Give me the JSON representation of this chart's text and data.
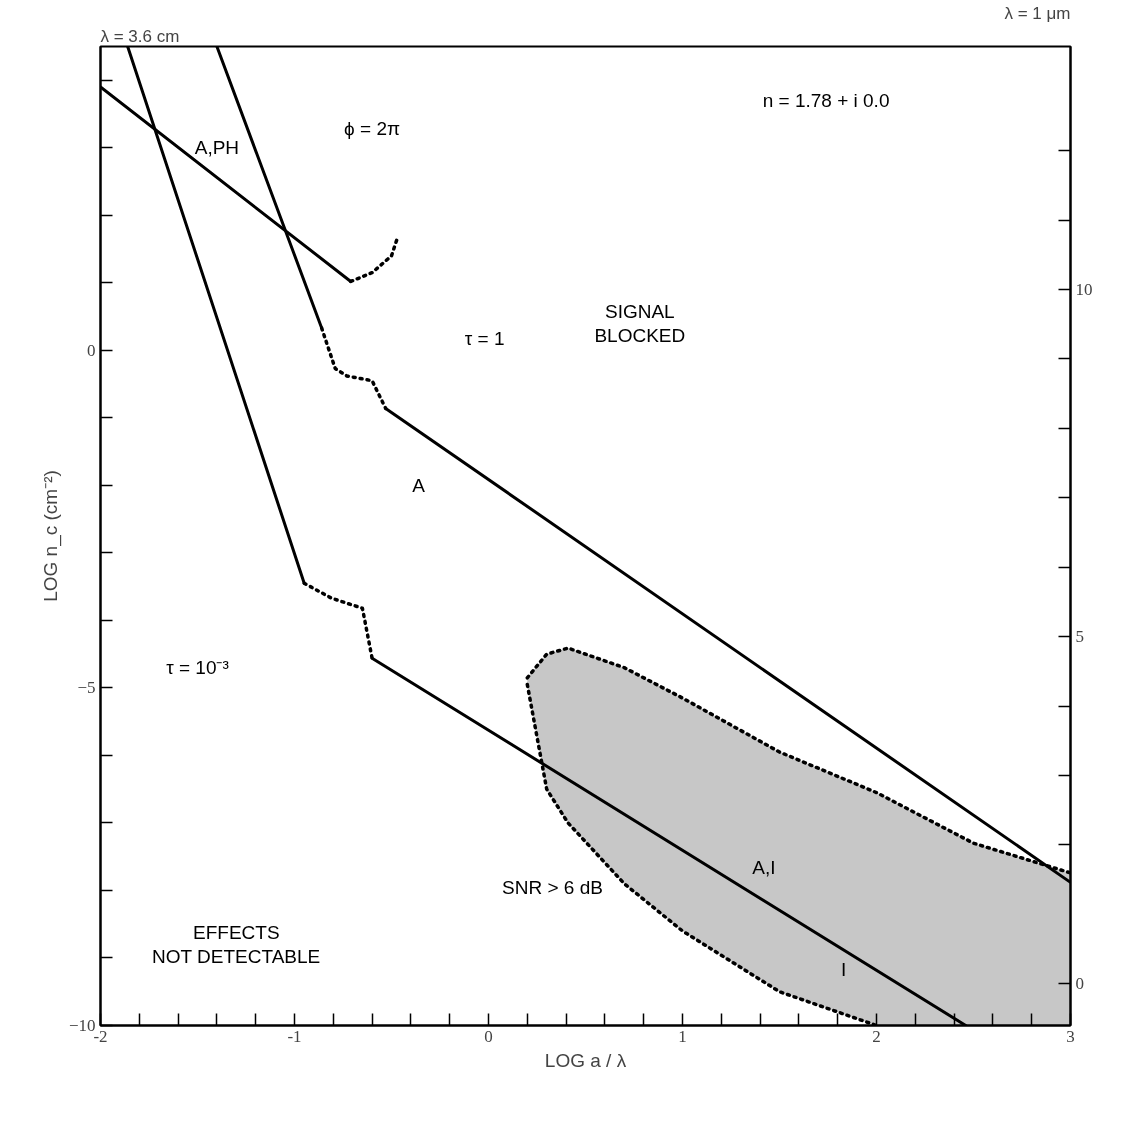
{
  "chart_data": {
    "type": "line",
    "xlabel": "LOG a / λ",
    "ylabel": "LOG n_c (cm⁻²)",
    "xlim": [
      -2,
      3
    ],
    "xticks": [
      -2,
      {
        "value": -1.8,
        "label": null
      },
      {
        "value": -1.6,
        "label": null
      },
      {
        "value": -1.4,
        "label": null
      },
      {
        "value": -1.2,
        "label": null
      },
      -1,
      {
        "value": -0.8,
        "label": null
      },
      {
        "value": -0.6,
        "label": null
      },
      {
        "value": -0.4,
        "label": null
      },
      {
        "value": -0.2,
        "label": null
      },
      0,
      {
        "value": 0.2,
        "label": null
      },
      {
        "value": 0.4,
        "label": null
      },
      {
        "value": 0.6,
        "label": null
      },
      {
        "value": 0.8,
        "label": null
      },
      1,
      {
        "value": 1.2,
        "label": null
      },
      {
        "value": 1.4,
        "label": null
      },
      {
        "value": 1.6,
        "label": null
      },
      {
        "value": 1.8,
        "label": null
      },
      2,
      {
        "value": 2.2,
        "label": null
      },
      {
        "value": 2.4,
        "label": null
      },
      {
        "value": 2.6,
        "label": null
      },
      {
        "value": 2.8,
        "label": null
      },
      3
    ],
    "ylim": [
      -10,
      4.5
    ],
    "yticks": [
      {
        "value": -10,
        "label": "−10"
      },
      {
        "value": -9,
        "label": null
      },
      {
        "value": -8,
        "label": null
      },
      {
        "value": -7,
        "label": null
      },
      {
        "value": -6,
        "label": null
      },
      {
        "value": -5,
        "label": "−5"
      },
      {
        "value": -4,
        "label": null
      },
      {
        "value": -3,
        "label": null
      },
      {
        "value": -2,
        "label": null
      },
      {
        "value": -1,
        "label": null
      },
      0,
      {
        "value": 1,
        "label": null
      },
      {
        "value": 2,
        "label": null
      },
      {
        "value": 3,
        "label": null
      },
      {
        "value": 4,
        "label": null
      }
    ],
    "y2lim": [
      -0.6,
      13.5
    ],
    "y2ticks": [
      0,
      {
        "value": 2,
        "label": null
      },
      {
        "value": 3,
        "label": null
      },
      {
        "value": 4,
        "label": null
      },
      5,
      {
        "value": 6,
        "label": null
      },
      {
        "value": 7,
        "label": null
      },
      {
        "value": 8,
        "label": null
      },
      {
        "value": 9,
        "label": null
      },
      10,
      {
        "value": 11,
        "label": null
      },
      {
        "value": 12,
        "label": null
      }
    ],
    "grid": false,
    "series": [
      {
        "color": "#000000",
        "line_style": "solid",
        "x": [
          -2,
          -0.71
        ],
        "values": [
          3.9,
          1.02
        ]
      },
      {
        "color": "#000000",
        "line_style": "dotted",
        "x": [
          -0.71,
          -0.6,
          -0.5,
          -0.47
        ],
        "values": [
          1.02,
          1.15,
          1.4,
          1.66
        ]
      },
      {
        "color": "#000000",
        "line_style": "solid",
        "x": [
          -1.4,
          -0.86
        ],
        "values": [
          4.5,
          0.33
        ]
      },
      {
        "color": "#000000",
        "line_style": "dotted",
        "x": [
          -0.86,
          -0.79,
          -0.73,
          -0.6,
          -0.53
        ],
        "values": [
          0.33,
          -0.27,
          -0.38,
          -0.45,
          -0.86
        ]
      },
      {
        "color": "#000000",
        "line_style": "solid",
        "x": [
          -0.53,
          3
        ],
        "values": [
          -0.86,
          -7.88
        ]
      },
      {
        "color": "#000000",
        "line_style": "solid",
        "x": [
          -1.86,
          -0.95
        ],
        "values": [
          4.5,
          -3.45
        ]
      },
      {
        "color": "#000000",
        "line_style": "dotted",
        "x": [
          -0.95,
          -0.81,
          -0.65,
          -0.6
        ],
        "values": [
          -3.45,
          -3.67,
          -3.82,
          -4.56
        ]
      },
      {
        "color": "#000000",
        "line_style": "solid",
        "x": [
          -0.6,
          2.46
        ],
        "values": [
          -4.56,
          -10
        ]
      },
      {
        "color": "#000000",
        "line_style": "dotted",
        "x": [
          0.2,
          0.3,
          0.41,
          0.7,
          1.0,
          1.5,
          2.0,
          2.5,
          3.0
        ],
        "values": [
          -4.85,
          -4.5,
          -4.41,
          -4.7,
          -5.15,
          -5.95,
          -6.55,
          -7.3,
          -7.74
        ],
        "upper": [
          -4.85,
          -4.5,
          -4.41,
          -4.7,
          -5.15,
          -5.95,
          -6.55,
          -7.3,
          -7.74
        ],
        "lower": [
          -4.95,
          -6.5,
          -7.0,
          -7.9,
          -8.6,
          -9.5,
          -10,
          -10,
          -10
        ]
      },
      {
        "color": "#000000",
        "line_style": "dotted",
        "x": [
          0.2,
          0.3,
          0.41,
          0.7,
          1.0,
          1.5,
          2.0
        ],
        "values": [
          -4.95,
          -6.5,
          -7.0,
          -7.9,
          -8.6,
          -9.5,
          -10
        ]
      }
    ],
    "annotations": [
      "λ = 3.6 cm",
      "λ = 1 μm",
      "n = 1.78 + i 0.0",
      "SIGNAL\nBLOCKED",
      "A,PH",
      "ϕ = 2π",
      "τ = 1",
      "A",
      "τ = 10⁻³",
      "A,I",
      "SNR > 6 dB",
      "EFFECTS\nNOT DETECTABLE",
      "I"
    ]
  }
}
